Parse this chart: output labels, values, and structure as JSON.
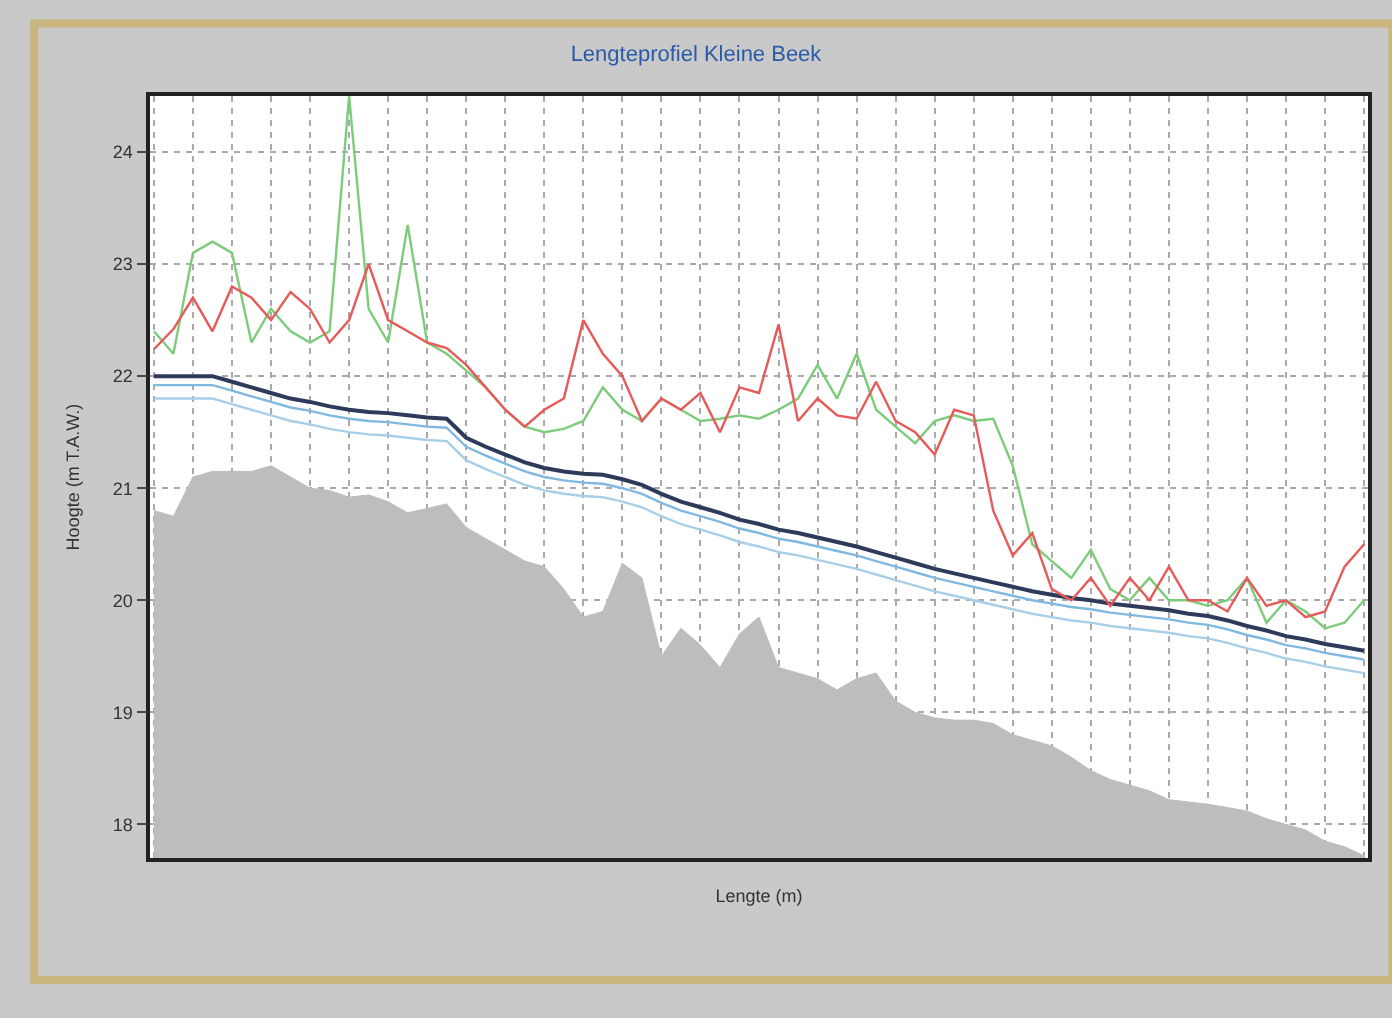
{
  "chart_data": {
    "type": "line",
    "title": "Lengteprofiel Kleine Beek",
    "xlabel": "Lengte (m)",
    "ylabel": "Hoogte (m T.A.W.)",
    "categories": [
      null,
      null,
      null,
      null,
      null,
      null,
      null,
      null,
      null,
      null,
      null,
      null,
      null,
      null,
      null,
      null,
      null,
      null,
      null,
      null,
      null,
      null,
      null,
      null,
      null,
      null,
      null,
      null,
      null,
      null,
      null,
      null,
      null,
      null,
      null,
      null,
      null,
      null,
      null,
      null,
      null,
      null,
      null,
      null,
      null,
      null,
      null,
      null,
      null,
      null,
      null,
      null,
      null,
      null,
      null,
      null,
      null,
      null,
      null,
      null,
      null,
      null,
      null
    ],
    "ylim": [
      17.7,
      24.5
    ],
    "yticks": [
      18,
      19,
      20,
      21,
      22,
      23,
      24
    ],
    "grid": true,
    "tick_labels": "y",
    "marker": "none",
    "series": [
      {
        "type": "area",
        "color": "#bdbdbd",
        "values": [
          20.8,
          20.75,
          21.1,
          21.15,
          21.15,
          21.15,
          21.2,
          21.1,
          21.0,
          20.98,
          20.92,
          20.94,
          20.88,
          20.78,
          20.82,
          20.86,
          20.65,
          20.55,
          20.45,
          20.35,
          20.3,
          20.1,
          19.85,
          19.9,
          20.33,
          20.2,
          19.5,
          19.75,
          19.6,
          19.4,
          19.7,
          19.85,
          19.4,
          19.35,
          19.3,
          19.2,
          19.3,
          19.35,
          19.1,
          19.0,
          18.95,
          18.93,
          18.93,
          18.9,
          18.8,
          18.75,
          18.7,
          18.6,
          18.48,
          18.4,
          18.35,
          18.3,
          18.22,
          18.2,
          18.18,
          18.15,
          18.12,
          18.05,
          18.0,
          17.95,
          17.85,
          17.8,
          17.72
        ]
      },
      {
        "color": "#a8cfe8",
        "values": [
          21.8,
          21.8,
          21.8,
          21.8,
          21.75,
          21.7,
          21.65,
          21.6,
          21.57,
          21.53,
          21.5,
          21.48,
          21.47,
          21.45,
          21.43,
          21.42,
          21.25,
          21.17,
          21.1,
          21.03,
          20.98,
          20.95,
          20.93,
          20.92,
          20.88,
          20.83,
          20.75,
          20.68,
          20.63,
          20.58,
          20.52,
          20.48,
          20.43,
          20.4,
          20.36,
          20.32,
          20.28,
          20.23,
          20.18,
          20.13,
          20.08,
          20.04,
          20.0,
          19.96,
          19.92,
          19.88,
          19.85,
          19.82,
          19.8,
          19.77,
          19.75,
          19.73,
          19.71,
          19.68,
          19.66,
          19.62,
          19.57,
          19.53,
          19.48,
          19.45,
          19.41,
          19.38,
          19.35
        ]
      },
      {
        "color": "#7fb8e0",
        "values": [
          21.92,
          21.92,
          21.92,
          21.92,
          21.87,
          21.82,
          21.77,
          21.72,
          21.69,
          21.65,
          21.62,
          21.6,
          21.59,
          21.57,
          21.55,
          21.54,
          21.37,
          21.29,
          21.22,
          21.15,
          21.1,
          21.07,
          21.05,
          21.04,
          21.0,
          20.95,
          20.87,
          20.8,
          20.75,
          20.7,
          20.64,
          20.6,
          20.55,
          20.52,
          20.48,
          20.44,
          20.4,
          20.35,
          20.3,
          20.25,
          20.2,
          20.16,
          20.12,
          20.08,
          20.04,
          20.0,
          19.97,
          19.94,
          19.92,
          19.89,
          19.87,
          19.85,
          19.83,
          19.8,
          19.78,
          19.74,
          19.69,
          19.65,
          19.6,
          19.57,
          19.53,
          19.5,
          19.47
        ]
      },
      {
        "color": "#2d3a5a",
        "values": [
          22.0,
          22.0,
          22.0,
          22.0,
          21.95,
          21.9,
          21.85,
          21.8,
          21.77,
          21.73,
          21.7,
          21.68,
          21.67,
          21.65,
          21.63,
          21.62,
          21.45,
          21.37,
          21.3,
          21.23,
          21.18,
          21.15,
          21.13,
          21.12,
          21.08,
          21.03,
          20.95,
          20.88,
          20.83,
          20.78,
          20.72,
          20.68,
          20.63,
          20.6,
          20.56,
          20.52,
          20.48,
          20.43,
          20.38,
          20.33,
          20.28,
          20.24,
          20.2,
          20.16,
          20.12,
          20.08,
          20.05,
          20.02,
          20.0,
          19.97,
          19.95,
          19.93,
          19.91,
          19.88,
          19.86,
          19.82,
          19.77,
          19.73,
          19.68,
          19.65,
          19.61,
          19.58,
          19.55
        ]
      },
      {
        "color": "#7ccc7c",
        "values": [
          22.4,
          22.2,
          23.1,
          23.2,
          23.1,
          22.3,
          22.6,
          22.4,
          22.3,
          22.4,
          24.5,
          22.6,
          22.3,
          23.35,
          22.3,
          22.2,
          22.05,
          21.9,
          21.7,
          21.55,
          21.5,
          21.53,
          21.6,
          21.9,
          21.7,
          21.6,
          21.8,
          21.7,
          21.6,
          21.62,
          21.65,
          21.62,
          21.7,
          21.8,
          22.1,
          21.8,
          22.2,
          21.7,
          21.55,
          21.4,
          21.6,
          21.65,
          21.6,
          21.62,
          21.2,
          20.5,
          20.35,
          20.2,
          20.45,
          20.1,
          20.0,
          20.2,
          20.0,
          20.0,
          19.95,
          20.0,
          20.2,
          19.8,
          20.0,
          19.9,
          19.75,
          19.8,
          20.0
        ]
      },
      {
        "color": "#e85a5a",
        "values": [
          22.24,
          22.42,
          22.7,
          22.4,
          22.8,
          22.7,
          22.5,
          22.75,
          22.6,
          22.3,
          22.5,
          23.0,
          22.5,
          22.4,
          22.3,
          22.25,
          22.1,
          21.9,
          21.7,
          21.55,
          21.7,
          21.8,
          22.5,
          22.2,
          22.0,
          21.6,
          21.8,
          21.7,
          21.85,
          21.5,
          21.9,
          21.85,
          22.46,
          21.6,
          21.8,
          21.65,
          21.62,
          21.95,
          21.6,
          21.5,
          21.3,
          21.7,
          21.65,
          20.8,
          20.4,
          20.6,
          20.1,
          20.0,
          20.2,
          19.95,
          20.2,
          20.0,
          20.3,
          20.0,
          20.0,
          19.9,
          20.2,
          19.95,
          20.0,
          19.85,
          19.9,
          20.3,
          20.5
        ]
      }
    ]
  }
}
